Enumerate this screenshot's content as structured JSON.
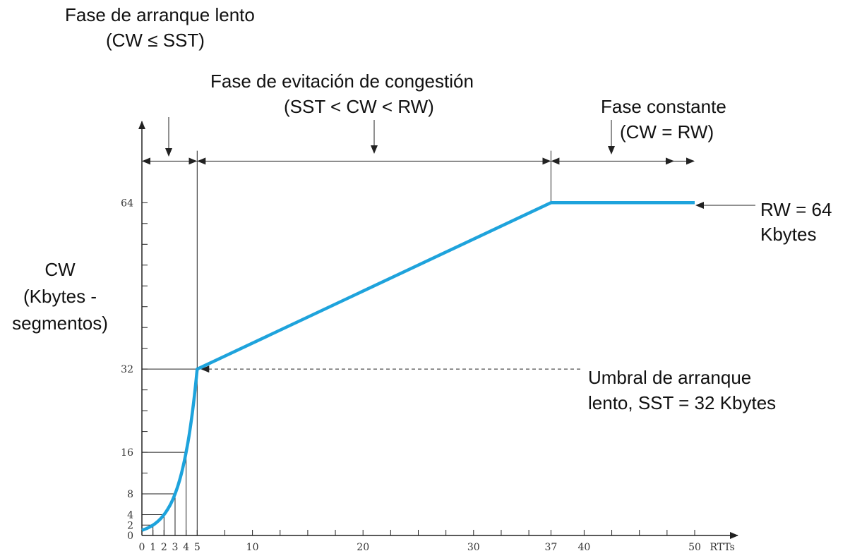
{
  "colors": {
    "curve": "#1ea3dc",
    "axis": "#222222",
    "text": "#111111"
  },
  "annotations": {
    "slow_start_line1": "Fase de arranque lento",
    "slow_start_line2": "(CW ≤ SST)",
    "avoidance_line1": "Fase de evitación de congestión",
    "avoidance_line2": "(SST < CW < RW)",
    "constant_line1": "Fase constante",
    "constant_line2": "(CW = RW)",
    "rw_line1": "RW = 64",
    "rw_line2": "Kbytes",
    "sst_line1": "Umbral de arranque",
    "sst_line2": "lento, SST = 32 Kbytes",
    "ylabel_line1": "CW",
    "ylabel_line2": "(Kbytes -",
    "ylabel_line3": "segmentos)"
  },
  "chart_data": {
    "type": "line",
    "xlabel": "RTTs",
    "ylabel": "CW (Kbytes - segmentos)",
    "xlim": [
      0,
      53
    ],
    "ylim": [
      0,
      78
    ],
    "x_tick_labels": [
      {
        "value": 0,
        "label": "0"
      },
      {
        "value": 1,
        "label": "1"
      },
      {
        "value": 2,
        "label": "2"
      },
      {
        "value": 3,
        "label": "3"
      },
      {
        "value": 4,
        "label": "4"
      },
      {
        "value": 5,
        "label": "5"
      },
      {
        "value": 10,
        "label": "10"
      },
      {
        "value": 20,
        "label": "20"
      },
      {
        "value": 30,
        "label": "30"
      },
      {
        "value": 37,
        "label": "37"
      },
      {
        "value": 40,
        "label": "40"
      },
      {
        "value": 50,
        "label": "50"
      },
      {
        "value": 52.5,
        "label": "RTTs"
      }
    ],
    "y_tick_labels": [
      {
        "value": 0,
        "label": "0"
      },
      {
        "value": 2,
        "label": "2"
      },
      {
        "value": 4,
        "label": "4"
      },
      {
        "value": 8,
        "label": "8"
      },
      {
        "value": 16,
        "label": "16"
      },
      {
        "value": 32,
        "label": "32"
      },
      {
        "value": 64,
        "label": "64"
      }
    ],
    "x_minor_ticks": [
      0,
      1,
      2,
      3,
      4,
      5,
      7.5,
      10,
      12.5,
      15,
      17.5,
      20,
      22.5,
      25,
      27.5,
      30,
      32.5,
      35,
      37,
      40,
      42.5,
      45,
      47.5,
      50
    ],
    "y_minor_ticks": [
      4,
      8,
      12,
      16,
      20,
      24,
      28,
      32,
      36,
      40,
      44,
      48,
      52,
      56,
      60,
      64
    ],
    "series": [
      {
        "values": [
          {
            "x": 0,
            "y": 1
          },
          {
            "x": 1,
            "y": 2
          },
          {
            "x": 2,
            "y": 4
          },
          {
            "x": 3,
            "y": 8
          },
          {
            "x": 4,
            "y": 16
          },
          {
            "x": 5,
            "y": 32
          },
          {
            "x": 37,
            "y": 64
          },
          {
            "x": 50,
            "y": 64
          }
        ]
      }
    ],
    "sst": 32,
    "rw": 64,
    "phase_boundaries": [
      5,
      37
    ],
    "phase_arrow_end": 50
  }
}
